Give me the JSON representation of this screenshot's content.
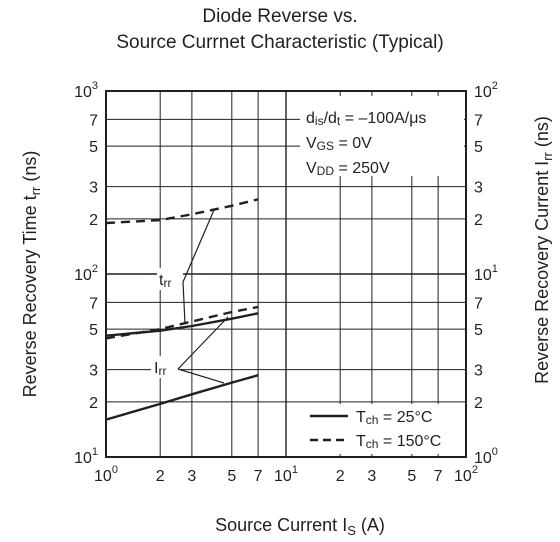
{
  "title_line1": "Diode Reverse vs.",
  "title_line2": "Source Currnet Characteristic  (Typical)",
  "xlabel": {
    "text": "Source Current",
    "symbol": "I",
    "subscript": "S",
    "unit": "(A)"
  },
  "ylabel_left": {
    "text": "Reverse Recovery Time",
    "symbol": "t",
    "subscript": "rr",
    "unit": "(ns)"
  },
  "ylabel_right": {
    "text": "Reverse Recovery Current",
    "symbol": "I",
    "subscript": "rr",
    "unit": "(ns)"
  },
  "conditions": [
    {
      "symbol": "d",
      "sub": "is",
      "mid": "/d",
      "sub2": "t",
      "rest": " = –100A/μs"
    },
    {
      "symbol": "V",
      "sub": "GS",
      "mid": "",
      "sub2": "",
      "rest": " = 0V"
    },
    {
      "symbol": "V",
      "sub": "DD",
      "mid": "",
      "sub2": "",
      "rest": " = 250V"
    }
  ],
  "legend": [
    {
      "symbol": "T",
      "sub": "ch",
      "rest": " = 25°C",
      "style": "solid"
    },
    {
      "symbol": "T",
      "sub": "ch",
      "rest": " = 150°C",
      "style": "dashed"
    }
  ],
  "annotations": [
    {
      "symbol": "t",
      "sub": "rr"
    },
    {
      "symbol": "I",
      "sub": "rr"
    }
  ],
  "chart_data": {
    "type": "line",
    "x_scale": "log",
    "y_scale": "log",
    "xlim": [
      1,
      100
    ],
    "ylim_left": [
      10,
      1000
    ],
    "ylim_right": [
      1,
      100
    ],
    "x_ticks": [
      {
        "v": 1,
        "base": "10",
        "exp": "0"
      },
      {
        "v": 2,
        "base": "2",
        "exp": ""
      },
      {
        "v": 3,
        "base": "3",
        "exp": ""
      },
      {
        "v": 5,
        "base": "5",
        "exp": ""
      },
      {
        "v": 7,
        "base": "7",
        "exp": ""
      },
      {
        "v": 10,
        "base": "10",
        "exp": "1"
      },
      {
        "v": 20,
        "base": "2",
        "exp": ""
      },
      {
        "v": 30,
        "base": "3",
        "exp": ""
      },
      {
        "v": 50,
        "base": "5",
        "exp": ""
      },
      {
        "v": 70,
        "base": "7",
        "exp": ""
      },
      {
        "v": 100,
        "base": "10",
        "exp": "2"
      }
    ],
    "y_ticks_left": [
      {
        "v": 10,
        "base": "10",
        "exp": "1"
      },
      {
        "v": 20,
        "base": "2",
        "exp": ""
      },
      {
        "v": 30,
        "base": "3",
        "exp": ""
      },
      {
        "v": 50,
        "base": "5",
        "exp": ""
      },
      {
        "v": 70,
        "base": "7",
        "exp": ""
      },
      {
        "v": 100,
        "base": "10",
        "exp": "2"
      },
      {
        "v": 200,
        "base": "2",
        "exp": ""
      },
      {
        "v": 300,
        "base": "3",
        "exp": ""
      },
      {
        "v": 500,
        "base": "5",
        "exp": ""
      },
      {
        "v": 700,
        "base": "7",
        "exp": ""
      },
      {
        "v": 1000,
        "base": "10",
        "exp": "3"
      }
    ],
    "y_ticks_right": [
      {
        "v": 1,
        "base": "10",
        "exp": "0"
      },
      {
        "v": 2,
        "base": "2",
        "exp": ""
      },
      {
        "v": 3,
        "base": "3",
        "exp": ""
      },
      {
        "v": 5,
        "base": "5",
        "exp": ""
      },
      {
        "v": 7,
        "base": "7",
        "exp": ""
      },
      {
        "v": 10,
        "base": "10",
        "exp": "1"
      },
      {
        "v": 20,
        "base": "2",
        "exp": ""
      },
      {
        "v": 30,
        "base": "3",
        "exp": ""
      },
      {
        "v": 50,
        "base": "5",
        "exp": ""
      },
      {
        "v": 70,
        "base": "7",
        "exp": ""
      },
      {
        "v": 100,
        "base": "10",
        "exp": "2"
      }
    ],
    "grid": true,
    "series": [
      {
        "quantity": "trr",
        "axis": "left",
        "condition": "Tch = 25°C",
        "style": "solid",
        "x": [
          1,
          2,
          3,
          5,
          7
        ],
        "y": [
          46,
          49,
          52,
          57,
          61
        ]
      },
      {
        "quantity": "trr",
        "axis": "left",
        "condition": "Tch = 150°C",
        "style": "dashed",
        "x": [
          1,
          2,
          3,
          5,
          7
        ],
        "y": [
          190,
          197,
          212,
          236,
          256
        ]
      },
      {
        "quantity": "Irr",
        "axis": "right",
        "condition": "Tch = 25°C",
        "style": "solid",
        "x": [
          1,
          2,
          3,
          5,
          7
        ],
        "y": [
          1.6,
          1.95,
          2.2,
          2.55,
          2.8
        ]
      },
      {
        "quantity": "Irr",
        "axis": "right",
        "condition": "Tch = 150°C",
        "style": "dashed",
        "x": [
          1,
          2,
          3,
          5,
          7
        ],
        "y": [
          4.45,
          5.0,
          5.5,
          6.2,
          6.6
        ]
      }
    ],
    "colors": {
      "ink": "#231f20",
      "background": "#ffffff"
    }
  }
}
